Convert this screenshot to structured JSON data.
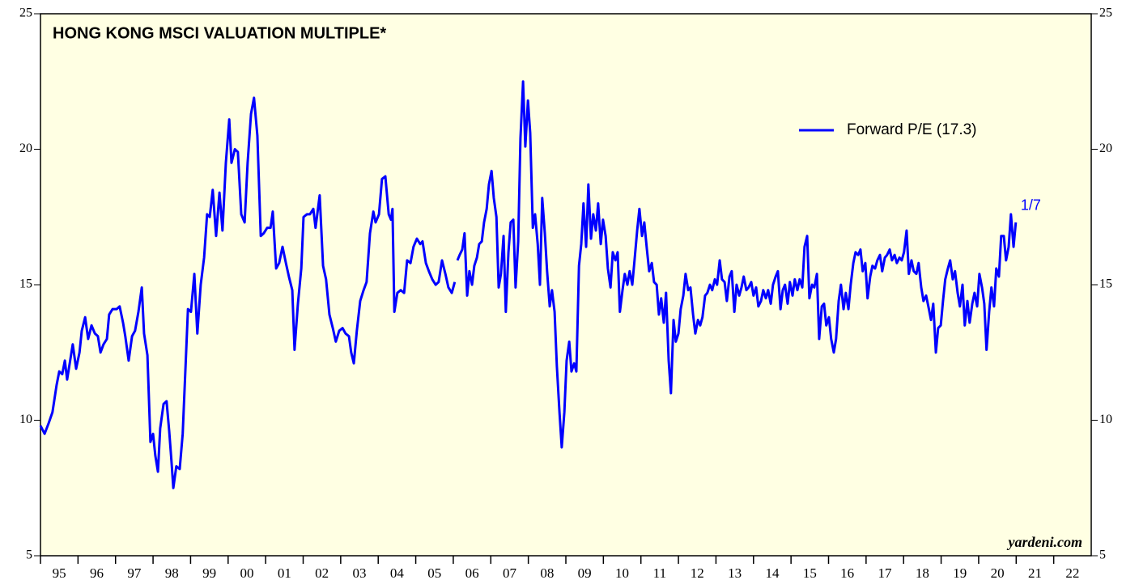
{
  "chart_data": {
    "type": "line",
    "title": "HONG KONG MSCI VALUATION MULTIPLE*",
    "source": "yardeni.com",
    "annotations": [
      {
        "text": "1/7"
      }
    ],
    "legend": "upper right",
    "xlim": [
      1995,
      2023
    ],
    "ylim": [
      5,
      25
    ],
    "yticks": [
      5,
      10,
      15,
      20,
      25
    ],
    "xticks": [
      {
        "value": 1995,
        "label": "95"
      },
      {
        "value": 1996,
        "label": "96"
      },
      {
        "value": 1997,
        "label": "97"
      },
      {
        "value": 1998,
        "label": "98"
      },
      {
        "value": 1999,
        "label": "99"
      },
      {
        "value": 2000,
        "label": "00"
      },
      {
        "value": 2001,
        "label": "01"
      },
      {
        "value": 2002,
        "label": "02"
      },
      {
        "value": 2003,
        "label": "03"
      },
      {
        "value": 2004,
        "label": "04"
      },
      {
        "value": 2005,
        "label": "05"
      },
      {
        "value": 2006,
        "label": "06"
      },
      {
        "value": 2007,
        "label": "07"
      },
      {
        "value": 2008,
        "label": "08"
      },
      {
        "value": 2009,
        "label": "09"
      },
      {
        "value": 2010,
        "label": "10"
      },
      {
        "value": 2011,
        "label": "11"
      },
      {
        "value": 2012,
        "label": "12"
      },
      {
        "value": 2013,
        "label": "13"
      },
      {
        "value": 2014,
        "label": "14"
      },
      {
        "value": 2015,
        "label": "15"
      },
      {
        "value": 2016,
        "label": "16"
      },
      {
        "value": 2017,
        "label": "17"
      },
      {
        "value": 2018,
        "label": "18"
      },
      {
        "value": 2019,
        "label": "19"
      },
      {
        "value": 2020,
        "label": "20"
      },
      {
        "value": 2021,
        "label": "21"
      },
      {
        "value": 2022,
        "label": "22"
      }
    ],
    "x": [
      1995.0,
      1995.11,
      1995.22,
      1995.32,
      1995.43,
      1995.5,
      1995.58,
      1995.65,
      1995.71,
      1995.86,
      1995.95,
      1996.04,
      1996.1,
      1996.19,
      1996.27,
      1996.36,
      1996.45,
      1996.53,
      1996.6,
      1996.68,
      1996.77,
      1996.83,
      1996.92,
      1997.03,
      1997.11,
      1997.2,
      1997.26,
      1997.35,
      1997.44,
      1997.52,
      1997.61,
      1997.7,
      1997.76,
      1997.85,
      1997.93,
      1998.0,
      1998.06,
      1998.13,
      1998.19,
      1998.28,
      1998.36,
      1998.43,
      1998.49,
      1998.54,
      1998.62,
      1998.71,
      1998.79,
      1998.93,
      1999.01,
      1999.1,
      1999.18,
      1999.27,
      1999.36,
      1999.44,
      1999.51,
      1999.59,
      1999.68,
      1999.77,
      1999.85,
      1999.94,
      2000.03,
      2000.09,
      2000.18,
      2000.26,
      2000.35,
      2000.44,
      2000.52,
      2000.61,
      2000.69,
      2000.78,
      2000.87,
      2000.95,
      2001.04,
      2001.13,
      2001.19,
      2001.28,
      2001.36,
      2001.45,
      2001.54,
      2001.62,
      2001.71,
      2001.77,
      2001.86,
      2001.95,
      2002.01,
      2002.1,
      2002.18,
      2002.27,
      2002.33,
      2002.44,
      2002.53,
      2002.61,
      2002.7,
      2002.79,
      2002.87,
      2002.96,
      2003.05,
      2003.13,
      2003.22,
      2003.28,
      2003.35,
      2003.43,
      2003.52,
      2003.61,
      2003.69,
      2003.78,
      2003.87,
      2003.93,
      2004.02,
      2004.1,
      2004.19,
      2004.28,
      2004.34,
      2004.38,
      2004.43,
      2004.51,
      2004.6,
      2004.69,
      2004.77,
      2004.86,
      2004.94,
      2005.03,
      2005.12,
      2005.18,
      2005.27,
      2005.35,
      2005.44,
      2005.53,
      2005.61,
      2005.7,
      2005.79,
      2005.87,
      2005.96,
      2006.04,
      2006.07,
      2006.11,
      2006.17,
      2006.24,
      2006.3,
      2006.37,
      2006.43,
      2006.5,
      2006.56,
      2006.63,
      2006.69,
      2006.76,
      2006.82,
      2006.89,
      2006.95,
      2007.02,
      2007.08,
      2007.15,
      2007.21,
      2007.27,
      2007.34,
      2007.4,
      2007.47,
      2007.53,
      2007.6,
      2007.66,
      2007.73,
      2007.79,
      2007.86,
      2007.92,
      2007.99,
      2008.05,
      2008.12,
      2008.18,
      2008.25,
      2008.31,
      2008.37,
      2008.44,
      2008.5,
      2008.57,
      2008.63,
      2008.7,
      2008.76,
      2008.83,
      2008.89,
      2008.96,
      2009.02,
      2009.09,
      2009.15,
      2009.22,
      2009.28,
      2009.35,
      2009.41,
      2009.47,
      2009.54,
      2009.6,
      2009.67,
      2009.73,
      2009.8,
      2009.86,
      2009.93,
      2009.99,
      2010.06,
      2010.12,
      2010.19,
      2010.25,
      2010.32,
      2010.38,
      2010.44,
      2010.51,
      2010.57,
      2010.64,
      2010.7,
      2010.77,
      2010.83,
      2010.9,
      2010.96,
      2011.03,
      2011.09,
      2011.16,
      2011.22,
      2011.29,
      2011.35,
      2011.42,
      2011.48,
      2011.54,
      2011.61,
      2011.67,
      2011.74,
      2011.8,
      2011.87,
      2011.93,
      2012.0,
      2012.06,
      2012.13,
      2012.19,
      2012.26,
      2012.32,
      2012.39,
      2012.45,
      2012.52,
      2012.58,
      2012.64,
      2012.71,
      2012.77,
      2012.84,
      2012.9,
      2012.97,
      2013.03,
      2013.1,
      2013.16,
      2013.23,
      2013.29,
      2013.36,
      2013.42,
      2013.49,
      2013.55,
      2013.62,
      2013.68,
      2013.74,
      2013.81,
      2013.87,
      2013.94,
      2014.0,
      2014.07,
      2014.13,
      2014.2,
      2014.26,
      2014.33,
      2014.39,
      2014.46,
      2014.52,
      2014.59,
      2014.65,
      2014.72,
      2014.78,
      2014.84,
      2014.91,
      2014.97,
      2015.04,
      2015.1,
      2015.17,
      2015.23,
      2015.3,
      2015.36,
      2015.43,
      2015.49,
      2015.56,
      2015.62,
      2015.69,
      2015.75,
      2015.82,
      2015.88,
      2015.94,
      2016.01,
      2016.07,
      2016.14,
      2016.2,
      2016.27,
      2016.33,
      2016.4,
      2016.46,
      2016.53,
      2016.59,
      2016.66,
      2016.72,
      2016.79,
      2016.85,
      2016.91,
      2016.98,
      2017.04,
      2017.11,
      2017.17,
      2017.24,
      2017.3,
      2017.37,
      2017.43,
      2017.5,
      2017.56,
      2017.63,
      2017.69,
      2017.76,
      2017.82,
      2017.89,
      2017.95,
      2018.01,
      2018.08,
      2018.14,
      2018.21,
      2018.27,
      2018.34,
      2018.4,
      2018.47,
      2018.53,
      2018.6,
      2018.66,
      2018.73,
      2018.79,
      2018.86,
      2018.92,
      2018.99,
      2019.05,
      2019.11,
      2019.18,
      2019.24,
      2019.31,
      2019.37,
      2019.44,
      2019.5,
      2019.57,
      2019.63,
      2019.7,
      2019.76,
      2019.83,
      2019.89,
      2019.96,
      2020.02,
      2020.09,
      2020.15,
      2020.21,
      2020.28,
      2020.34,
      2020.41,
      2020.47,
      2020.54,
      2020.6,
      2020.67,
      2020.73,
      2020.8,
      2020.86,
      2020.93,
      2020.99
    ],
    "series": [
      {
        "name": "Forward P/E (17.3)",
        "color": "#0000ff",
        "values": [
          9.8,
          9.5,
          9.9,
          10.3,
          11.3,
          11.8,
          11.7,
          12.2,
          11.5,
          12.8,
          11.9,
          12.5,
          13.3,
          13.8,
          13.0,
          13.5,
          13.2,
          13.1,
          12.5,
          12.8,
          13.0,
          13.9,
          14.1,
          14.1,
          14.2,
          13.6,
          13.1,
          12.2,
          13.1,
          13.3,
          14.0,
          14.9,
          13.2,
          12.4,
          9.2,
          9.5,
          8.7,
          8.1,
          9.7,
          10.6,
          10.7,
          9.6,
          8.5,
          7.5,
          8.3,
          8.2,
          9.5,
          14.1,
          14.0,
          15.4,
          13.2,
          15.0,
          16.0,
          17.6,
          17.5,
          18.5,
          16.8,
          18.4,
          17.0,
          19.5,
          21.1,
          19.5,
          20.0,
          19.9,
          17.6,
          17.3,
          19.5,
          21.3,
          21.9,
          20.5,
          16.8,
          16.9,
          17.1,
          17.1,
          17.7,
          15.6,
          15.8,
          16.4,
          15.8,
          15.3,
          14.8,
          12.6,
          14.3,
          15.6,
          17.5,
          17.6,
          17.6,
          17.8,
          17.1,
          18.3,
          15.7,
          15.2,
          13.9,
          13.4,
          12.9,
          13.3,
          13.4,
          13.2,
          13.1,
          12.5,
          12.1,
          13.3,
          14.4,
          14.8,
          15.1,
          16.9,
          17.7,
          17.3,
          17.6,
          18.9,
          19.0,
          17.6,
          17.4,
          17.8,
          14.0,
          14.7,
          14.8,
          14.7,
          15.9,
          15.8,
          16.4,
          16.7,
          16.5,
          16.6,
          15.8,
          15.5,
          15.2,
          15.0,
          15.1,
          15.9,
          15.4,
          14.9,
          14.7,
          15.1,
          null,
          15.9,
          16.1,
          16.3,
          16.9,
          14.6,
          15.5,
          15.0,
          15.7,
          16.0,
          16.5,
          16.6,
          17.3,
          17.8,
          18.7,
          19.2,
          18.2,
          17.5,
          14.9,
          15.4,
          16.8,
          14.0,
          16.2,
          17.3,
          17.4,
          14.9,
          16.6,
          20.4,
          22.5,
          20.1,
          21.8,
          20.6,
          17.1,
          17.6,
          16.5,
          15.0,
          18.2,
          16.9,
          15.5,
          14.2,
          14.8,
          14.0,
          12.0,
          10.3,
          9.0,
          10.3,
          12.2,
          12.9,
          11.8,
          12.1,
          11.8,
          15.7,
          16.5,
          18.0,
          16.4,
          18.7,
          16.7,
          17.6,
          17.0,
          18.0,
          16.5,
          17.4,
          16.8,
          15.6,
          14.9,
          16.2,
          15.9,
          16.2,
          14.0,
          14.8,
          15.4,
          15.0,
          15.5,
          15.0,
          15.9,
          17.0,
          17.8,
          16.8,
          17.3,
          16.3,
          15.5,
          15.8,
          15.1,
          15.0,
          13.9,
          14.5,
          13.6,
          14.7,
          12.2,
          11.0,
          13.7,
          12.9,
          13.2,
          14.1,
          14.6,
          15.4,
          14.8,
          14.9,
          13.9,
          13.2,
          13.7,
          13.5,
          13.8,
          14.6,
          14.7,
          15.0,
          14.8,
          15.2,
          15.0,
          15.9,
          15.2,
          15.1,
          14.4,
          15.3,
          15.5,
          14.0,
          15.0,
          14.6,
          14.9,
          15.3,
          14.8,
          14.9,
          15.1,
          14.6,
          14.9,
          14.2,
          14.4,
          14.8,
          14.5,
          14.8,
          14.3,
          15.0,
          15.3,
          15.5,
          14.1,
          14.8,
          15.0,
          14.3,
          15.1,
          14.6,
          15.2,
          14.8,
          15.2,
          14.9,
          16.4,
          16.8,
          14.5,
          15.0,
          14.9,
          15.4,
          13.0,
          14.2,
          14.3,
          13.5,
          13.8,
          13.0,
          12.5,
          13.0,
          14.4,
          15.0,
          14.1,
          14.7,
          14.1,
          15.0,
          15.8,
          16.2,
          16.1,
          16.3,
          15.5,
          15.8,
          14.5,
          15.3,
          15.7,
          15.6,
          15.9,
          16.1,
          15.5,
          16.0,
          16.1,
          16.3,
          15.9,
          16.1,
          15.8,
          16.0,
          15.9,
          16.2,
          17.0,
          15.4,
          15.9,
          15.5,
          15.4,
          15.8,
          14.9,
          14.4,
          14.6,
          14.2,
          13.7,
          14.3,
          12.5,
          13.4,
          13.5,
          14.4,
          15.2,
          15.6,
          15.9,
          15.2,
          15.5,
          14.7,
          14.2,
          15.0,
          13.5,
          14.4,
          13.6,
          14.3,
          14.7,
          14.2,
          15.4,
          14.9,
          14.3,
          12.6,
          14.0,
          14.9,
          14.2,
          15.6,
          15.3,
          16.8,
          16.8,
          15.9,
          16.4,
          17.6,
          16.4,
          17.3
        ]
      }
    ]
  }
}
